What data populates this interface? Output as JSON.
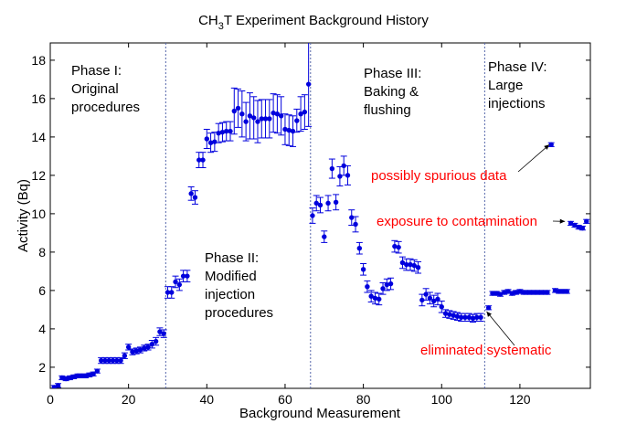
{
  "chart_data": {
    "type": "scatter",
    "title_parts": {
      "pre": "CH",
      "sub1": "3",
      "mid": "T",
      "post": " Experiment Background History"
    },
    "xlabel": "Background Measurement",
    "ylabel": "Activity (Bq)",
    "xlim": [
      0,
      138
    ],
    "ylim": [
      0.9,
      18.9
    ],
    "xticks": [
      0,
      20,
      40,
      60,
      80,
      100,
      120
    ],
    "yticks": [
      2,
      4,
      6,
      8,
      10,
      12,
      14,
      16,
      18
    ],
    "grid": false,
    "point_color": "#0000dd",
    "annotation_color": "#ff0000",
    "phase_boundaries": [
      29.5,
      66.5,
      111
    ],
    "phase_labels": [
      {
        "lines": [
          "Phase I:",
          "Original",
          "procedures"
        ]
      },
      {
        "lines": [
          "Phase II:",
          "Modified",
          "injection",
          "procedures"
        ]
      },
      {
        "lines": [
          "Phase III:",
          "Baking &",
          "flushing"
        ]
      },
      {
        "lines": [
          "Phase IV:",
          "Large",
          "injections"
        ]
      }
    ],
    "annotations": [
      {
        "text": "possibly spurious data",
        "target": [
          127.5,
          13.6
        ]
      },
      {
        "text": "exposure to contamination",
        "target": [
          131.5,
          9.6
        ]
      },
      {
        "text": "eliminated systematic",
        "target": [
          111.5,
          4.9
        ]
      }
    ],
    "points": [
      [
        1,
        0.95,
        0.1
      ],
      [
        2,
        1.05,
        0.1
      ],
      [
        3,
        1.45,
        0.1
      ],
      [
        4,
        1.4,
        0.1
      ],
      [
        5,
        1.45,
        0.1
      ],
      [
        6,
        1.5,
        0.1
      ],
      [
        7,
        1.55,
        0.1
      ],
      [
        8,
        1.55,
        0.1
      ],
      [
        9,
        1.55,
        0.1
      ],
      [
        10,
        1.6,
        0.1
      ],
      [
        11,
        1.65,
        0.1
      ],
      [
        12,
        1.8,
        0.1
      ],
      [
        13,
        2.35,
        0.15
      ],
      [
        14,
        2.35,
        0.15
      ],
      [
        15,
        2.35,
        0.15
      ],
      [
        16,
        2.35,
        0.15
      ],
      [
        17,
        2.35,
        0.15
      ],
      [
        18,
        2.35,
        0.15
      ],
      [
        19,
        2.6,
        0.15
      ],
      [
        20,
        3.05,
        0.15
      ],
      [
        21,
        2.8,
        0.15
      ],
      [
        22,
        2.85,
        0.15
      ],
      [
        23,
        2.9,
        0.15
      ],
      [
        24,
        3.0,
        0.15
      ],
      [
        25,
        3.05,
        0.15
      ],
      [
        26,
        3.2,
        0.2
      ],
      [
        27,
        3.35,
        0.2
      ],
      [
        28,
        3.85,
        0.2
      ],
      [
        29,
        3.75,
        0.2
      ],
      [
        30,
        5.9,
        0.3
      ],
      [
        31,
        5.9,
        0.3
      ],
      [
        32,
        6.45,
        0.3
      ],
      [
        33,
        6.3,
        0.3
      ],
      [
        34,
        6.75,
        0.3
      ],
      [
        35,
        6.75,
        0.3
      ],
      [
        36,
        11.05,
        0.35
      ],
      [
        37,
        10.85,
        0.35
      ],
      [
        38,
        12.8,
        0.4
      ],
      [
        39,
        12.8,
        0.4
      ],
      [
        40,
        13.9,
        0.5
      ],
      [
        41,
        13.7,
        0.5
      ],
      [
        42,
        13.75,
        0.5
      ],
      [
        43,
        14.2,
        0.5
      ],
      [
        44,
        14.25,
        0.5
      ],
      [
        45,
        14.3,
        0.5
      ],
      [
        46,
        14.3,
        0.5
      ],
      [
        47,
        15.35,
        1.2
      ],
      [
        48,
        15.5,
        1.0
      ],
      [
        49,
        15.2,
        1.2
      ],
      [
        50,
        14.8,
        1.0
      ],
      [
        51,
        15.1,
        1.2
      ],
      [
        52,
        15.0,
        1.1
      ],
      [
        53,
        14.8,
        1.1
      ],
      [
        54,
        14.95,
        1.0
      ],
      [
        55,
        14.95,
        1.0
      ],
      [
        56,
        14.95,
        1.0
      ],
      [
        57,
        15.25,
        1.0
      ],
      [
        58,
        15.2,
        1.0
      ],
      [
        59,
        15.1,
        1.0
      ],
      [
        60,
        14.4,
        0.8
      ],
      [
        61,
        14.35,
        0.8
      ],
      [
        62,
        14.3,
        0.8
      ],
      [
        63,
        14.85,
        0.6
      ],
      [
        64,
        15.2,
        0.9
      ],
      [
        65,
        15.3,
        0.9
      ],
      [
        66,
        16.75,
        2.2
      ],
      [
        67,
        9.9,
        0.4
      ],
      [
        68,
        10.55,
        0.4
      ],
      [
        69,
        10.45,
        0.4
      ],
      [
        70,
        8.8,
        0.3
      ],
      [
        71,
        10.55,
        0.4
      ],
      [
        72,
        12.35,
        0.5
      ],
      [
        73,
        10.6,
        0.4
      ],
      [
        74,
        11.95,
        0.5
      ],
      [
        75,
        12.5,
        0.5
      ],
      [
        76,
        12.0,
        0.5
      ],
      [
        77,
        9.8,
        0.4
      ],
      [
        78,
        9.45,
        0.4
      ],
      [
        79,
        8.2,
        0.3
      ],
      [
        80,
        7.1,
        0.3
      ],
      [
        81,
        6.2,
        0.3
      ],
      [
        82,
        5.7,
        0.3
      ],
      [
        83,
        5.6,
        0.3
      ],
      [
        84,
        5.55,
        0.3
      ],
      [
        85,
        6.1,
        0.3
      ],
      [
        86,
        6.3,
        0.3
      ],
      [
        87,
        6.35,
        0.3
      ],
      [
        88,
        8.3,
        0.3
      ],
      [
        89,
        8.25,
        0.3
      ],
      [
        90,
        7.45,
        0.3
      ],
      [
        91,
        7.35,
        0.3
      ],
      [
        92,
        7.35,
        0.3
      ],
      [
        93,
        7.3,
        0.3
      ],
      [
        94,
        7.2,
        0.3
      ],
      [
        95,
        5.5,
        0.3
      ],
      [
        96,
        5.8,
        0.3
      ],
      [
        97,
        5.6,
        0.3
      ],
      [
        98,
        5.45,
        0.3
      ],
      [
        99,
        5.55,
        0.3
      ],
      [
        100,
        5.15,
        0.3
      ],
      [
        101,
        4.8,
        0.2
      ],
      [
        102,
        4.75,
        0.2
      ],
      [
        103,
        4.7,
        0.2
      ],
      [
        104,
        4.65,
        0.2
      ],
      [
        105,
        4.6,
        0.2
      ],
      [
        106,
        4.6,
        0.2
      ],
      [
        107,
        4.6,
        0.2
      ],
      [
        108,
        4.55,
        0.2
      ],
      [
        109,
        4.6,
        0.2
      ],
      [
        110,
        4.6,
        0.2
      ],
      [
        112,
        5.1,
        0.1
      ],
      [
        113,
        5.85,
        0.1
      ],
      [
        114,
        5.85,
        0.1
      ],
      [
        115,
        5.8,
        0.1
      ],
      [
        116,
        5.9,
        0.1
      ],
      [
        117,
        5.95,
        0.1
      ],
      [
        118,
        5.85,
        0.1
      ],
      [
        119,
        5.9,
        0.1
      ],
      [
        120,
        5.95,
        0.1
      ],
      [
        121,
        5.9,
        0.1
      ],
      [
        122,
        5.9,
        0.1
      ],
      [
        123,
        5.9,
        0.1
      ],
      [
        124,
        5.9,
        0.1
      ],
      [
        125,
        5.9,
        0.1
      ],
      [
        126,
        5.9,
        0.1
      ],
      [
        127,
        5.9,
        0.1
      ],
      [
        128,
        13.6,
        0.1
      ],
      [
        129,
        6.0,
        0.1
      ],
      [
        130,
        5.95,
        0.1
      ],
      [
        131,
        5.95,
        0.1
      ],
      [
        132,
        5.95,
        0.1
      ],
      [
        133,
        9.5,
        0.1
      ],
      [
        134,
        9.4,
        0.1
      ],
      [
        135,
        9.3,
        0.1
      ],
      [
        136,
        9.25,
        0.1
      ],
      [
        137,
        9.6,
        0.1
      ]
    ]
  }
}
